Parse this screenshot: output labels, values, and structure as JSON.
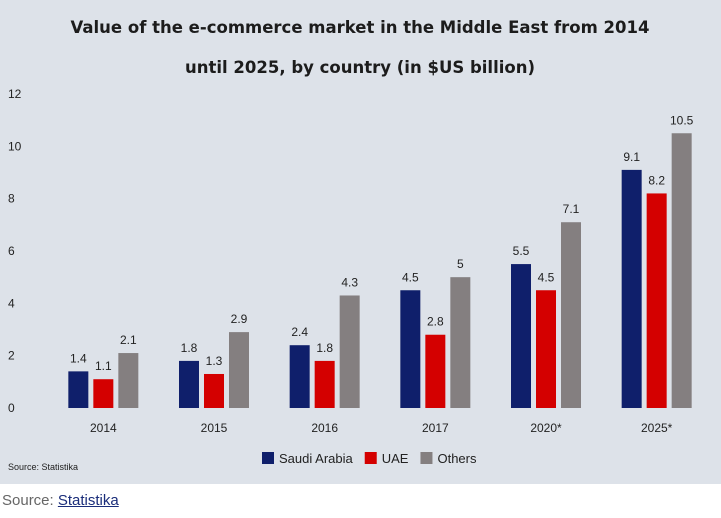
{
  "chart_data": {
    "type": "bar",
    "title": "Value of the e-commerce market in the Middle East from 2014 until 2025, by country (in $US billion)",
    "categories": [
      "2014",
      "2015",
      "2016",
      "2017",
      "2020*",
      "2025*"
    ],
    "series": [
      {
        "name": "Saudi Arabia",
        "color": "#0f1f6b",
        "values": [
          1.4,
          1.8,
          2.4,
          4.5,
          5.5,
          9.1
        ],
        "labels": [
          "1.4",
          "1.8",
          "2.4",
          "4.5",
          "5.5",
          "9.1"
        ]
      },
      {
        "name": "UAE",
        "color": "#d40000",
        "values": [
          1.1,
          1.3,
          1.8,
          2.8,
          4.5,
          8.2
        ],
        "labels": [
          "1.1",
          "1.3",
          "1.8",
          "2.8",
          "4.5",
          "8.2"
        ]
      },
      {
        "name": "Others",
        "color": "#847f80",
        "values": [
          2.1,
          2.9,
          4.3,
          5,
          7.1,
          10.5
        ],
        "labels": [
          "2.1",
          "2.9",
          "4.3",
          "5",
          "7.1",
          "10.5"
        ]
      }
    ],
    "ylim": [
      0,
      12
    ],
    "yticks": [
      "0",
      "2",
      "4",
      "6",
      "8",
      "10",
      "12"
    ],
    "xlabel": "",
    "ylabel": "",
    "grid": false,
    "legend_position": "bottom-center"
  },
  "chart_source_note": "Source: Statistika",
  "page_source": {
    "prefix": "Source: ",
    "link_text": "Statistika"
  }
}
